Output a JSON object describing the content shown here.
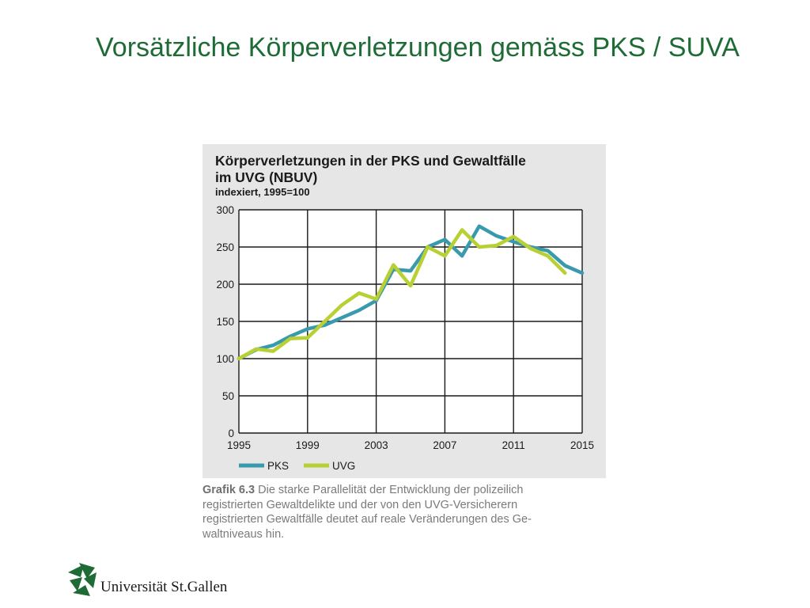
{
  "slide": {
    "title": "Vorsätzliche Körperverletzungen gemäss PKS / SUVA"
  },
  "chart_data": {
    "type": "line",
    "title_line1": "Körperverletzungen in der PKS und Gewaltfälle",
    "title_line2": "im UVG (NBUV)",
    "subtitle": "indexiert, 1995=100",
    "xlim": [
      1995,
      2015
    ],
    "ylim": [
      0,
      300
    ],
    "x_ticks": [
      "1995",
      "1999",
      "2003",
      "2007",
      "2011",
      "2015"
    ],
    "y_ticks": [
      "0",
      "50",
      "100",
      "150",
      "200",
      "250",
      "300"
    ],
    "grid": true,
    "legend_position": "bottom-left",
    "x": [
      1995,
      1996,
      1997,
      1998,
      1999,
      2000,
      2001,
      2002,
      2003,
      2004,
      2005,
      2006,
      2007,
      2008,
      2009,
      2010,
      2011,
      2012,
      2013,
      2014,
      2015
    ],
    "series": [
      {
        "name": "PKS",
        "color": "#3a9aad",
        "values": [
          100,
          112,
          118,
          130,
          140,
          145,
          155,
          165,
          178,
          220,
          218,
          250,
          260,
          238,
          278,
          265,
          257,
          250,
          245,
          225,
          215
        ]
      },
      {
        "name": "UVG",
        "color": "#b8d033",
        "values": [
          100,
          113,
          110,
          127,
          128,
          150,
          172,
          188,
          180,
          226,
          198,
          250,
          238,
          273,
          250,
          252,
          264,
          248,
          238,
          215,
          null
        ]
      }
    ]
  },
  "caption": {
    "label": "Grafik 6.3",
    "line1": "Die starke Parallelität der Entwicklung der polizeilich",
    "line2": "registrierten Gewaltdelikte und der von den UVG-Versicherern",
    "line3": "registrierten Gewaltfälle deutet auf reale Veränderungen des Ge-",
    "line4": "waltniveaus hin."
  },
  "logo": {
    "text": "Universität St.Gallen",
    "color": "#1e6b35"
  }
}
